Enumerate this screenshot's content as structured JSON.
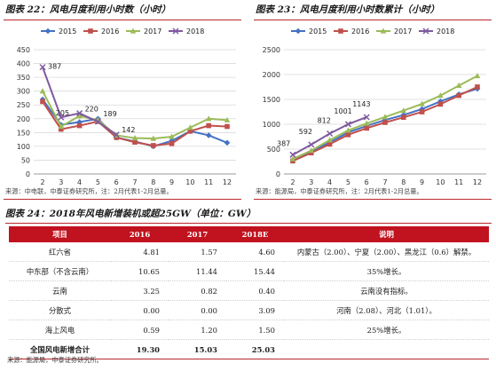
{
  "fig22": {
    "title": "图表 22：风电月度利用小时数（小时）",
    "source": "来源：中电联，中泰证券研究所，注：2月代表1-2月总量。"
  },
  "fig23": {
    "title": "图表 23：风电月度利用小时数累计（小时）",
    "source": "来源：能源局，中泰证券研究所，注：2月代表1-2月总量。"
  },
  "fig24": {
    "title": "图表 24：2018年风电新增装机或超25GW（单位：GW）",
    "source": "来源：能源局，中泰证券研究所。",
    "headers": [
      "项目",
      "2016",
      "2017",
      "2018E",
      "说明"
    ],
    "rows": [
      [
        "红六省",
        "4.81",
        "1.57",
        "4.60",
        "内蒙古（2.00）、宁夏（2.00）、黑龙江（0.6）解禁。"
      ],
      [
        "中东部（不含云南）",
        "10.65",
        "11.44",
        "15.44",
        "35%增长。"
      ],
      [
        "云南",
        "3.25",
        "0.82",
        "0.40",
        "云南没有指标。"
      ],
      [
        "分散式",
        "0.00",
        "0.00",
        "3.09",
        "河南（2.08）、河北（1.01）。"
      ],
      [
        "海上风电",
        "0.59",
        "1.20",
        "1.50",
        "25%增长。"
      ],
      [
        "全国风电新增合计",
        "19.30",
        "15.03",
        "25.03",
        ""
      ]
    ]
  },
  "colors": {
    "2015": "#4472c4",
    "2016": "#c0504d",
    "2017": "#9bbb59",
    "2018": "#7f5a9e",
    "accent": "#b8282e"
  },
  "chart_data": [
    {
      "type": "line",
      "title": "风电月度利用小时数（小时）",
      "x": [
        2,
        3,
        4,
        5,
        6,
        7,
        8,
        9,
        10,
        11,
        12
      ],
      "ylim": [
        0,
        450
      ],
      "yticks": [
        0,
        50,
        100,
        150,
        200,
        250,
        300,
        350,
        400,
        450
      ],
      "series": [
        {
          "name": "2015",
          "values": [
            270,
            178,
            188,
            200,
            132,
            118,
            100,
            120,
            155,
            140,
            113
          ]
        },
        {
          "name": "2016",
          "values": [
            262,
            162,
            175,
            190,
            132,
            115,
            103,
            110,
            155,
            175,
            172
          ]
        },
        {
          "name": "2017",
          "values": [
            300,
            172,
            210,
            195,
            140,
            130,
            128,
            135,
            168,
            200,
            195
          ]
        },
        {
          "name": "2018",
          "values": [
            387,
            205,
            220,
            189,
            142
          ]
        }
      ],
      "labels": [
        {
          "series": "2018",
          "x": 2,
          "text": "387"
        },
        {
          "series": "2018",
          "x": 3,
          "text": "205"
        },
        {
          "series": "2018",
          "x": 4,
          "text": "220"
        },
        {
          "series": "2018",
          "x": 5,
          "text": "189"
        },
        {
          "series": "2018",
          "x": 6,
          "text": "142"
        }
      ],
      "legend": "top"
    },
    {
      "type": "line",
      "title": "风电月度利用小时数累计（小时）",
      "x": [
        2,
        3,
        4,
        5,
        6,
        7,
        8,
        9,
        10,
        11,
        12
      ],
      "ylim": [
        0,
        2500
      ],
      "yticks": [
        0,
        500,
        1000,
        1500,
        2000,
        2500
      ],
      "series": [
        {
          "name": "2015",
          "values": [
            270,
            448,
            636,
            836,
            968,
            1086,
            1186,
            1306,
            1461,
            1601,
            1714
          ]
        },
        {
          "name": "2016",
          "values": [
            262,
            424,
            599,
            789,
            921,
            1036,
            1139,
            1249,
            1404,
            1579,
            1751
          ]
        },
        {
          "name": "2017",
          "values": [
            300,
            472,
            682,
            877,
            1017,
            1147,
            1275,
            1410,
            1578,
            1778,
            1973
          ]
        },
        {
          "name": "2018",
          "values": [
            387,
            592,
            812,
            1001,
            1143
          ]
        }
      ],
      "labels": [
        {
          "series": "2018",
          "x": 2,
          "text": "387"
        },
        {
          "series": "2018",
          "x": 3,
          "text": "592"
        },
        {
          "series": "2018",
          "x": 4,
          "text": "812"
        },
        {
          "series": "2018",
          "x": 5,
          "text": "1001"
        },
        {
          "series": "2018",
          "x": 6,
          "text": "1143"
        }
      ],
      "legend": "top"
    }
  ]
}
